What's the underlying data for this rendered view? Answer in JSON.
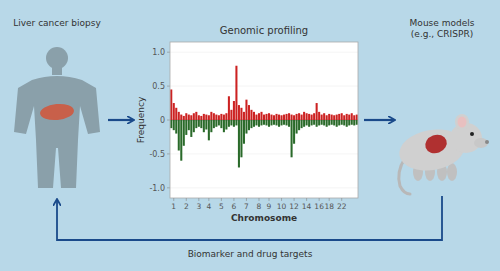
{
  "chart_data": {
    "type": "bar",
    "title": "Genomic profiling",
    "x_label": "Chromosome",
    "y_label": "Frequency",
    "annotations": [
      "Liver cancer biopsy",
      "Mouse models\n(e.g., CRISPR)",
      "Biomarker and drug targets"
    ],
    "categories": [
      null,
      "1",
      null,
      null,
      null,
      null,
      "2",
      null,
      null,
      null,
      null,
      "3",
      null,
      null,
      null,
      "4",
      null,
      null,
      null,
      null,
      "5",
      null,
      null,
      null,
      null,
      "6",
      null,
      null,
      null,
      null,
      "7",
      null,
      null,
      null,
      null,
      "8",
      null,
      null,
      null,
      "9",
      null,
      null,
      null,
      null,
      "10",
      null,
      null,
      null,
      null,
      "12",
      null,
      null,
      null,
      null,
      "14",
      null,
      null,
      null,
      null,
      "16",
      null,
      null,
      null,
      "18",
      null,
      null,
      null,
      null,
      "22",
      null,
      null,
      null,
      null,
      null,
      null
    ],
    "series": [
      {
        "color": "#cc2222",
        "values": [
          0.45,
          0.25,
          0.18,
          0.12,
          0.08,
          0.06,
          0.1,
          0.08,
          0.07,
          0.1,
          0.12,
          0.07,
          0.06,
          0.09,
          0.08,
          0.07,
          0.12,
          0.1,
          0.08,
          0.07,
          0.09,
          0.08,
          0.1,
          0.35,
          0.15,
          0.28,
          0.8,
          0.22,
          0.18,
          0.12,
          0.3,
          0.22,
          0.15,
          0.12,
          0.08,
          0.1,
          0.12,
          0.08,
          0.09,
          0.1,
          0.08,
          0.07,
          0.09,
          0.08,
          0.07,
          0.08,
          0.09,
          0.1,
          0.08,
          0.07,
          0.09,
          0.1,
          0.08,
          0.12,
          0.1,
          0.09,
          0.08,
          0.1,
          0.25,
          0.12,
          0.08,
          0.1,
          0.07,
          0.09,
          0.08,
          0.07,
          0.08,
          0.09,
          0.1,
          0.07,
          0.09,
          0.08,
          0.1,
          0.07,
          0.08
        ]
      },
      {
        "color": "#2a6a2a",
        "values": [
          -0.12,
          -0.15,
          -0.2,
          -0.45,
          -0.6,
          -0.38,
          -0.22,
          -0.15,
          -0.25,
          -0.18,
          -0.12,
          -0.1,
          -0.12,
          -0.18,
          -0.14,
          -0.3,
          -0.18,
          -0.12,
          -0.1,
          -0.08,
          -0.12,
          -0.18,
          -0.14,
          -0.1,
          -0.08,
          -0.1,
          -0.08,
          -0.7,
          -0.55,
          -0.35,
          -0.2,
          -0.15,
          -0.12,
          -0.1,
          -0.08,
          -0.1,
          -0.08,
          -0.07,
          -0.08,
          -0.1,
          -0.08,
          -0.07,
          -0.08,
          -0.1,
          -0.08,
          -0.07,
          -0.08,
          -0.1,
          -0.55,
          -0.35,
          -0.2,
          -0.15,
          -0.12,
          -0.1,
          -0.08,
          -0.1,
          -0.08,
          -0.07,
          -0.1,
          -0.08,
          -0.07,
          -0.08,
          -0.1,
          -0.08,
          -0.07,
          -0.08,
          -0.1,
          -0.08,
          -0.07,
          -0.08,
          -0.1,
          -0.08,
          -0.07,
          -0.08,
          -0.07
        ]
      }
    ],
    "ylim": [
      -1.15,
      1.15
    ],
    "yticks": [
      {
        "value": -1.0,
        "label": "-1.0"
      },
      -0.5,
      0,
      0.5,
      {
        "value": 1.0,
        "label": "1.0"
      }
    ]
  }
}
